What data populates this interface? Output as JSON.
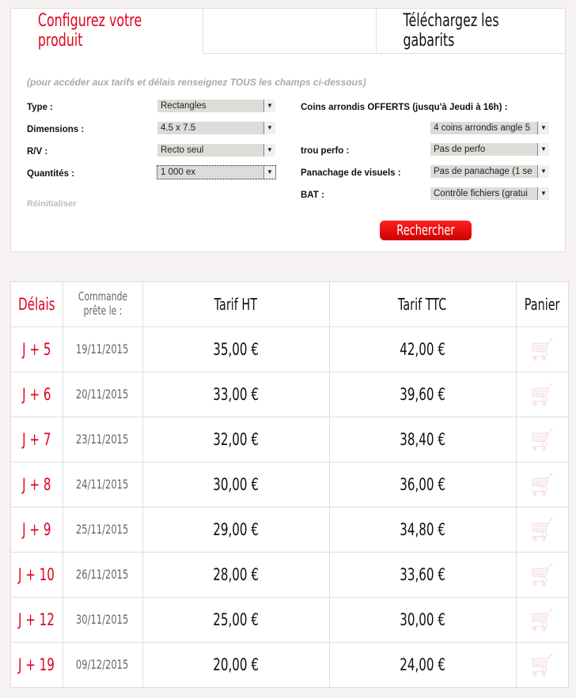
{
  "tabs": {
    "configure": "Configurez votre produit",
    "templates": "Téléchargez les gabarits"
  },
  "form": {
    "hint": "(pour accéder aux tarifs et délais renseignez TOUS les champs ci-dessous)",
    "type_label": "Type :",
    "type_value": "Rectangles",
    "dimensions_label": "Dimensions :",
    "dimensions_value": "4.5 x 7.5",
    "rv_label": "R/V :",
    "rv_value": "Recto seul",
    "quantity_label": "Quantités :",
    "quantity_value": "1 000 ex",
    "corners_label": "Coins arrondis OFFERTS (jusqu'à Jeudi à 16h) :",
    "corners_value": "4 coins arrondis angle 5",
    "perfo_label": "trou perfo :",
    "perfo_value": "Pas de perfo",
    "mix_label": "Panachage de visuels :",
    "mix_value": "Pas de panachage (1 se",
    "bat_label": "BAT :",
    "bat_value": "Contrôle fichiers (gratui",
    "reset": "Réinitialiser",
    "search": "Rechercher"
  },
  "table": {
    "headers": [
      "Délais",
      "Commande prête le :",
      "Tarif HT",
      "Tarif TTC",
      "Panier"
    ],
    "rows": [
      [
        "J + 5",
        "19/11/2015",
        "35,00 €",
        "42,00 €"
      ],
      [
        "J + 6",
        "20/11/2015",
        "33,00 €",
        "39,60 €"
      ],
      [
        "J + 7",
        "23/11/2015",
        "32,00 €",
        "38,40 €"
      ],
      [
        "J + 8",
        "24/11/2015",
        "30,00 €",
        "36,00 €"
      ],
      [
        "J + 9",
        "25/11/2015",
        "29,00 €",
        "34,80 €"
      ],
      [
        "J + 10",
        "26/11/2015",
        "28,00 €",
        "33,60 €"
      ],
      [
        "J + 12",
        "30/11/2015",
        "25,00 €",
        "30,00 €"
      ],
      [
        "J + 19",
        "09/12/2015",
        "20,00 €",
        "24,00 €"
      ]
    ]
  },
  "colors": {
    "accent": "#e3001b"
  }
}
